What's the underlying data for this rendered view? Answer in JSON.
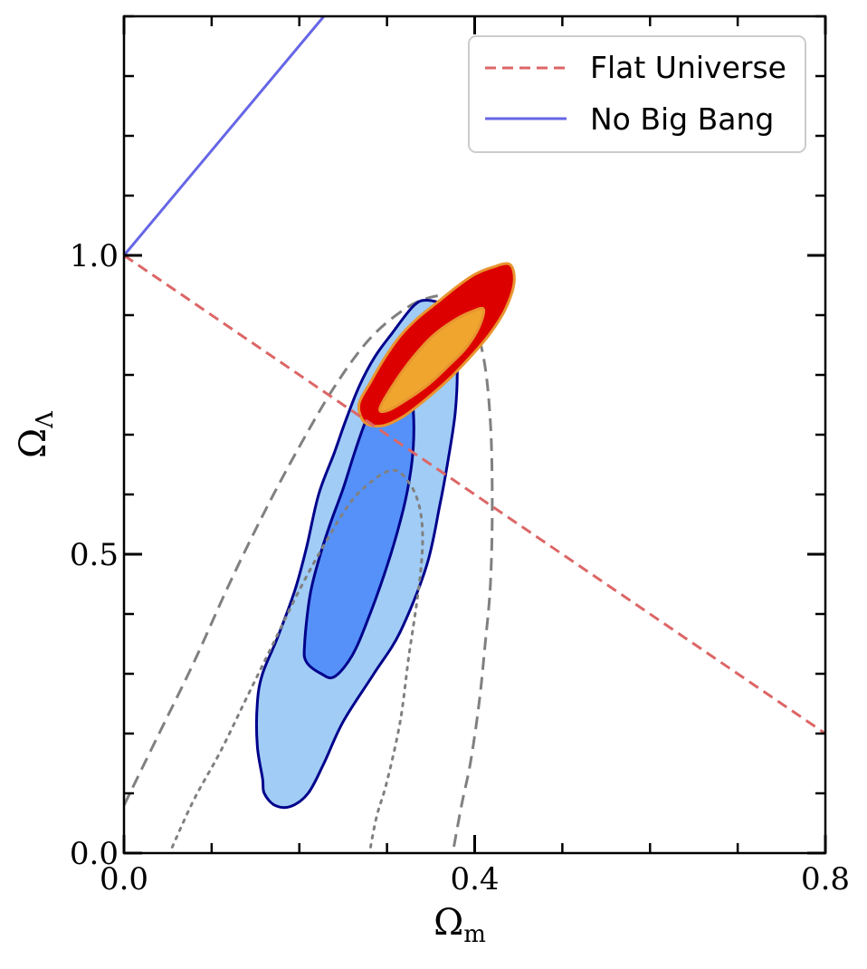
{
  "chart_data": {
    "type": "contour",
    "xlabel_main": "Ω",
    "xlabel_sub": "m",
    "ylabel_main": "Ω",
    "ylabel_sub": "Λ",
    "xlim": [
      0.0,
      0.8
    ],
    "ylim": [
      0.0,
      1.4
    ],
    "x_ticks": [
      {
        "value": 0.0,
        "label": "0.0"
      },
      {
        "value": 0.4,
        "label": "0.4"
      },
      {
        "value": 0.8,
        "label": "0.8"
      }
    ],
    "y_ticks": [
      {
        "value": 0.0,
        "label": "0.0"
      },
      {
        "value": 0.5,
        "label": "0.5"
      },
      {
        "value": 1.0,
        "label": "1.0"
      }
    ],
    "legend": [
      {
        "label": "Flat Universe",
        "style": "dashed",
        "color": "#dd6666"
      },
      {
        "label": "No Big Bang",
        "style": "solid",
        "color": "#6666e6"
      }
    ],
    "lines": {
      "flat_universe": {
        "x": [
          0.0,
          0.8
        ],
        "y": [
          1.0,
          0.2
        ],
        "color": "#dd6666"
      },
      "no_big_bang": {
        "x": [
          0.0,
          0.228
        ],
        "y": [
          1.0,
          1.4
        ],
        "color": "#6666e6"
      }
    },
    "contours": {
      "blue_outer": {
        "fill": "#a0ccf6",
        "stroke": "#00008b",
        "points": [
          [
            0.158,
            0.125
          ],
          [
            0.152,
            0.18
          ],
          [
            0.152,
            0.25
          ],
          [
            0.158,
            0.3
          ],
          [
            0.175,
            0.36
          ],
          [
            0.195,
            0.44
          ],
          [
            0.208,
            0.51
          ],
          [
            0.222,
            0.6
          ],
          [
            0.24,
            0.67
          ],
          [
            0.252,
            0.72
          ],
          [
            0.268,
            0.78
          ],
          [
            0.286,
            0.83
          ],
          [
            0.306,
            0.87
          ],
          [
            0.33,
            0.915
          ],
          [
            0.345,
            0.925
          ],
          [
            0.365,
            0.915
          ],
          [
            0.375,
            0.88
          ],
          [
            0.38,
            0.82
          ],
          [
            0.378,
            0.74
          ],
          [
            0.37,
            0.66
          ],
          [
            0.36,
            0.58
          ],
          [
            0.345,
            0.48
          ],
          [
            0.315,
            0.37
          ],
          [
            0.285,
            0.3
          ],
          [
            0.25,
            0.22
          ],
          [
            0.228,
            0.15
          ],
          [
            0.21,
            0.1
          ],
          [
            0.19,
            0.078
          ],
          [
            0.172,
            0.08
          ],
          [
            0.16,
            0.1
          ]
        ]
      },
      "blue_inner": {
        "fill": "#5591f9",
        "stroke": "#00008b",
        "points": [
          [
            0.206,
            0.35
          ],
          [
            0.212,
            0.43
          ],
          [
            0.222,
            0.49
          ],
          [
            0.235,
            0.55
          ],
          [
            0.25,
            0.61
          ],
          [
            0.263,
            0.67
          ],
          [
            0.275,
            0.72
          ],
          [
            0.29,
            0.77
          ],
          [
            0.3,
            0.8
          ],
          [
            0.315,
            0.81
          ],
          [
            0.325,
            0.79
          ],
          [
            0.33,
            0.74
          ],
          [
            0.33,
            0.68
          ],
          [
            0.325,
            0.62
          ],
          [
            0.316,
            0.56
          ],
          [
            0.3,
            0.48
          ],
          [
            0.278,
            0.39
          ],
          [
            0.26,
            0.33
          ],
          [
            0.24,
            0.295
          ],
          [
            0.225,
            0.3
          ],
          [
            0.208,
            0.32
          ]
        ]
      },
      "orange_outer": {
        "fill": "#dd0000",
        "stroke": "#e8952f",
        "points": [
          [
            0.268,
            0.75
          ],
          [
            0.282,
            0.79
          ],
          [
            0.298,
            0.83
          ],
          [
            0.315,
            0.865
          ],
          [
            0.335,
            0.895
          ],
          [
            0.358,
            0.922
          ],
          [
            0.38,
            0.948
          ],
          [
            0.4,
            0.968
          ],
          [
            0.42,
            0.98
          ],
          [
            0.44,
            0.985
          ],
          [
            0.445,
            0.955
          ],
          [
            0.435,
            0.91
          ],
          [
            0.418,
            0.87
          ],
          [
            0.398,
            0.835
          ],
          [
            0.372,
            0.795
          ],
          [
            0.345,
            0.76
          ],
          [
            0.318,
            0.73
          ],
          [
            0.295,
            0.715
          ],
          [
            0.275,
            0.72
          ]
        ]
      },
      "orange_inner": {
        "fill": "#efa52e",
        "stroke": "#e8952f",
        "points": [
          [
            0.292,
            0.745
          ],
          [
            0.31,
            0.79
          ],
          [
            0.33,
            0.83
          ],
          [
            0.352,
            0.865
          ],
          [
            0.375,
            0.89
          ],
          [
            0.395,
            0.905
          ],
          [
            0.41,
            0.91
          ],
          [
            0.405,
            0.88
          ],
          [
            0.39,
            0.845
          ],
          [
            0.37,
            0.815
          ],
          [
            0.348,
            0.785
          ],
          [
            0.322,
            0.758
          ],
          [
            0.3,
            0.74
          ]
        ]
      },
      "gray_dashed": {
        "stroke": "#808080",
        "points": [
          [
            0.0,
            0.08
          ],
          [
            0.04,
            0.2
          ],
          [
            0.08,
            0.32
          ],
          [
            0.12,
            0.45
          ],
          [
            0.16,
            0.57
          ],
          [
            0.2,
            0.68
          ],
          [
            0.24,
            0.78
          ],
          [
            0.28,
            0.86
          ],
          [
            0.32,
            0.91
          ],
          [
            0.35,
            0.93
          ],
          [
            0.375,
            0.93
          ],
          [
            0.395,
            0.9
          ],
          [
            0.41,
            0.83
          ],
          [
            0.418,
            0.72
          ],
          [
            0.42,
            0.58
          ],
          [
            0.418,
            0.45
          ],
          [
            0.412,
            0.35
          ],
          [
            0.405,
            0.25
          ],
          [
            0.395,
            0.15
          ],
          [
            0.385,
            0.08
          ],
          [
            0.375,
            0.0
          ]
        ]
      },
      "gray_dotted": {
        "stroke": "#808080",
        "points": [
          [
            0.055,
            0.01
          ],
          [
            0.08,
            0.09
          ],
          [
            0.11,
            0.17
          ],
          [
            0.14,
            0.26
          ],
          [
            0.17,
            0.35
          ],
          [
            0.2,
            0.44
          ],
          [
            0.23,
            0.52
          ],
          [
            0.26,
            0.59
          ],
          [
            0.29,
            0.63
          ],
          [
            0.31,
            0.64
          ],
          [
            0.325,
            0.62
          ],
          [
            0.335,
            0.59
          ],
          [
            0.34,
            0.55
          ],
          [
            0.34,
            0.5
          ],
          [
            0.335,
            0.43
          ],
          [
            0.325,
            0.33
          ],
          [
            0.315,
            0.22
          ],
          [
            0.3,
            0.12
          ],
          [
            0.288,
            0.06
          ],
          [
            0.28,
            0.0
          ]
        ]
      }
    }
  }
}
